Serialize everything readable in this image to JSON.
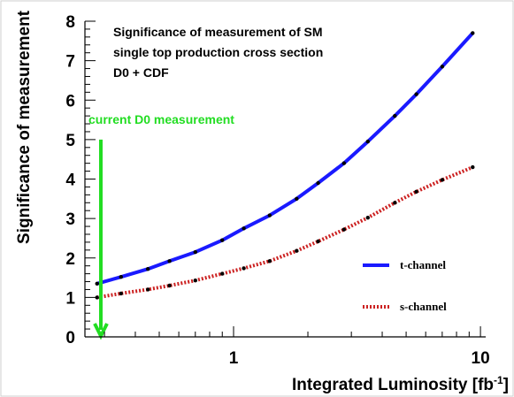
{
  "chart_data": {
    "type": "line",
    "title_lines": [
      "Significance of measurement of SM",
      "single top production cross section",
      "D0 + CDF"
    ],
    "xlabel": "Integrated Luminosity [fb",
    "xlabel_sup": "-1",
    "xlabel_end": "]",
    "ylabel": "Significance of measurement",
    "x_scale": "log",
    "xlim": [
      0.25,
      10.5
    ],
    "ylim": [
      0,
      8
    ],
    "x_ticks": [
      {
        "value": 1,
        "label": "1"
      },
      {
        "value": 10,
        "label": "10"
      }
    ],
    "y_ticks": [
      {
        "value": 0,
        "label": "0"
      },
      {
        "value": 1,
        "label": "1"
      },
      {
        "value": 2,
        "label": "2"
      },
      {
        "value": 3,
        "label": "3"
      },
      {
        "value": 4,
        "label": "4"
      },
      {
        "value": 5,
        "label": "5"
      },
      {
        "value": 6,
        "label": "6"
      },
      {
        "value": 7,
        "label": "7"
      },
      {
        "value": 8,
        "label": "8"
      }
    ],
    "grid": false,
    "legend_position": "bottom-right",
    "series": [
      {
        "name": "t-channel",
        "color": "#1a1aff",
        "style": "solid",
        "x": [
          0.28,
          0.35,
          0.45,
          0.55,
          0.7,
          0.9,
          1.1,
          1.4,
          1.8,
          2.2,
          2.8,
          3.5,
          4.5,
          5.5,
          7.0,
          9.3
        ],
        "y": [
          1.35,
          1.52,
          1.72,
          1.92,
          2.15,
          2.45,
          2.75,
          3.08,
          3.5,
          3.9,
          4.4,
          4.95,
          5.6,
          6.15,
          6.85,
          7.7
        ]
      },
      {
        "name": "s-channel",
        "color": "#cc2222",
        "style": "dotted",
        "x": [
          0.28,
          0.35,
          0.45,
          0.55,
          0.7,
          0.9,
          1.1,
          1.4,
          1.8,
          2.2,
          2.8,
          3.5,
          4.5,
          5.5,
          7.0,
          9.3
        ],
        "y": [
          1.0,
          1.1,
          1.2,
          1.3,
          1.43,
          1.6,
          1.74,
          1.92,
          2.18,
          2.42,
          2.72,
          3.02,
          3.4,
          3.68,
          3.98,
          4.3
        ]
      }
    ],
    "annotations": [
      {
        "text": "current D0 measurement",
        "color": "#22dd22",
        "arrow_x": 0.29,
        "arrow_y_from": 5.0,
        "arrow_y_to": 0.0
      }
    ]
  }
}
